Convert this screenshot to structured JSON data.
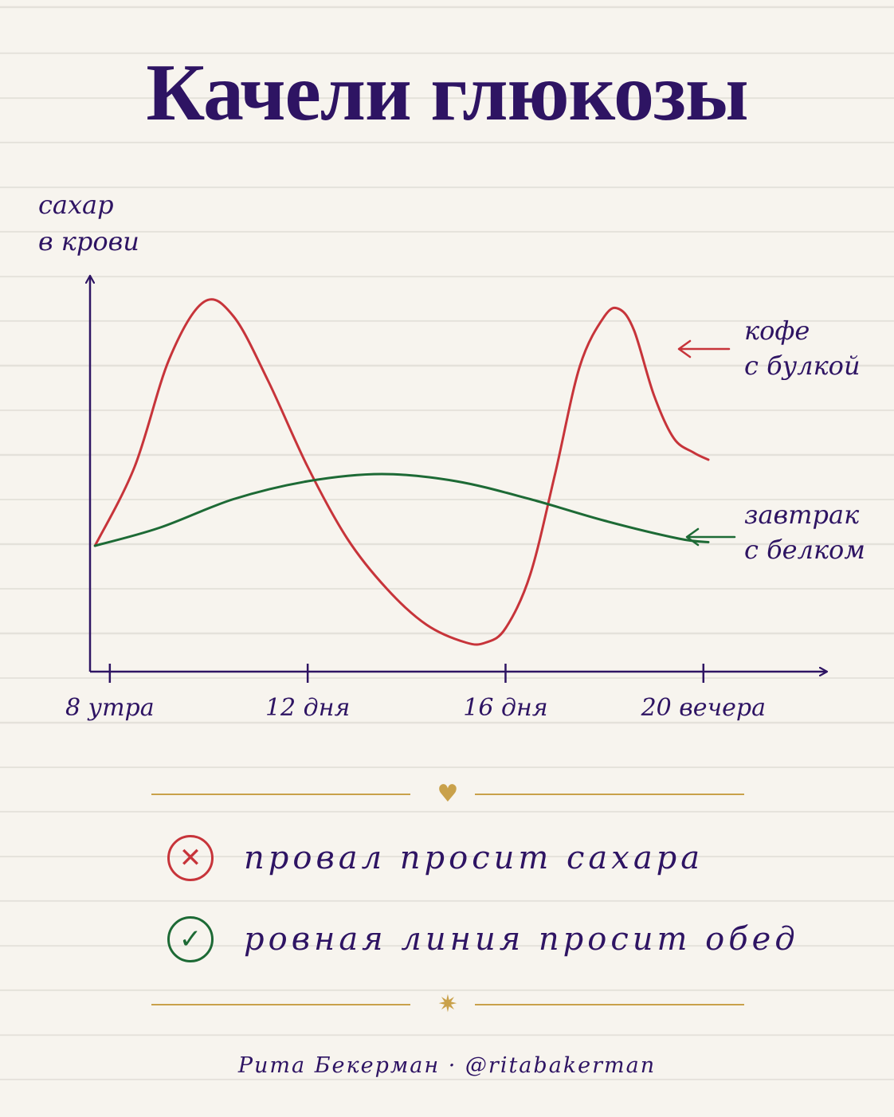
{
  "title": "Качели глюкозы",
  "chart_data": {
    "type": "line",
    "ylabel": [
      "сахар",
      "в крови"
    ],
    "x_ticks": [
      "8 утра",
      "12 дня",
      "16 дня",
      "20 вечера"
    ],
    "x_tick_hours": [
      8,
      12,
      16,
      20
    ],
    "xlim": [
      7.6,
      22.5
    ],
    "ylim": [
      0,
      100
    ],
    "series": [
      {
        "name": [
          "кофе",
          "с булкой"
        ],
        "color": "#c7343a",
        "x": [
          7.7,
          8.5,
          9.2,
          9.9,
          10.5,
          11.2,
          12.0,
          12.8,
          13.6,
          14.4,
          15.2,
          15.6,
          16.0,
          16.5,
          17.0,
          17.5,
          18.0,
          18.3,
          18.6,
          19.0,
          19.4,
          19.8,
          20.1
        ],
        "values": [
          30,
          52,
          82,
          98,
          94,
          76,
          52,
          32,
          18,
          8,
          3,
          3,
          7,
          22,
          50,
          80,
          94,
          96,
          90,
          72,
          60,
          56,
          54
        ]
      },
      {
        "name": [
          "завтрак",
          "с белком"
        ],
        "color": "#1d6a35",
        "x": [
          7.7,
          9.0,
          10.5,
          12.0,
          13.5,
          15.0,
          16.5,
          18.0,
          19.5,
          20.1
        ],
        "values": [
          30,
          35,
          43,
          48,
          50,
          48,
          43,
          37,
          32,
          31
        ]
      }
    ]
  },
  "legend": {
    "bad_icon": "✕",
    "bad_text": "провал просит сахара",
    "good_icon": "✓",
    "good_text": "ровная линия просит обед",
    "bad_color": "#c7343a",
    "good_color": "#1d6a35"
  },
  "dividers": {
    "top_icon": "♥",
    "bottom_icon": "✷"
  },
  "footer": "Рита Бекерман · @ritabakerman",
  "colors": {
    "ink": "#2e1463",
    "gold": "#c9a14a",
    "background": "#f7f4ee"
  }
}
